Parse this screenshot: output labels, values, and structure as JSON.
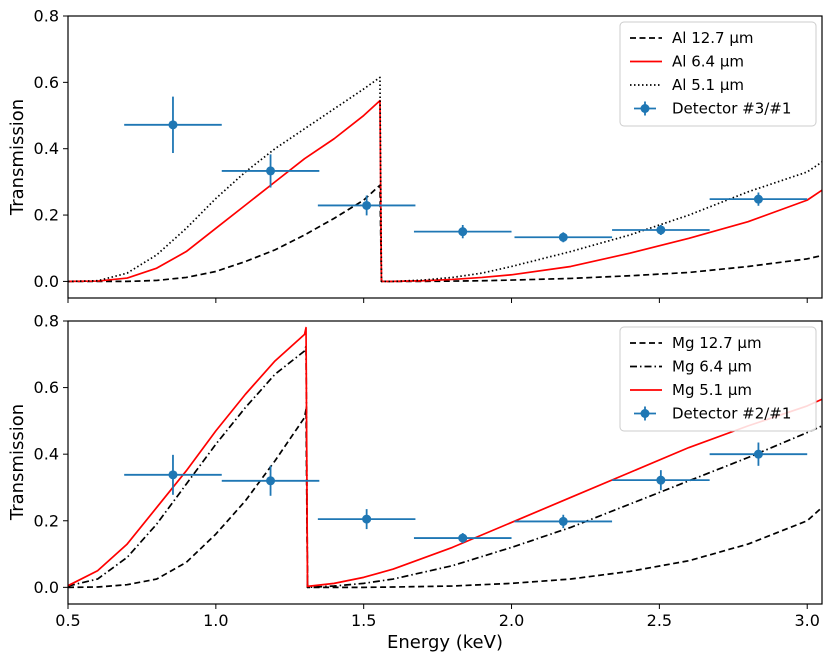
{
  "chart_data": [
    {
      "type": "line",
      "title": "",
      "xlabel": "",
      "ylabel": "Transmission",
      "xlim": [
        0.5,
        3.05
      ],
      "ylim": [
        -0.05,
        0.8
      ],
      "xticks": [
        0.5,
        1.0,
        1.5,
        2.0,
        2.5,
        3.0
      ],
      "show_xtick_labels": false,
      "yticks": [
        0.0,
        0.2,
        0.4,
        0.6,
        0.8
      ],
      "ytick_labels": [
        "0.0",
        "0.2",
        "0.4",
        "0.6",
        "0.8"
      ],
      "grid": false,
      "legend_position": "upper right",
      "series": [
        {
          "name": "Al 12.7 μm",
          "style": "dashed",
          "color": "#000000",
          "x": [
            0.5,
            0.6,
            0.7,
            0.8,
            0.9,
            1.0,
            1.1,
            1.2,
            1.3,
            1.4,
            1.5,
            1.555,
            1.56,
            1.6,
            1.7,
            1.8,
            1.9,
            2.0,
            2.2,
            2.4,
            2.6,
            2.8,
            3.0,
            3.05
          ],
          "y": [
            0,
            0,
            0,
            0.003,
            0.012,
            0.03,
            0.06,
            0.095,
            0.14,
            0.19,
            0.245,
            0.29,
            0,
            0,
            0,
            0.001,
            0.002,
            0.004,
            0.009,
            0.017,
            0.027,
            0.045,
            0.068,
            0.078
          ]
        },
        {
          "name": "Al 6.4 μm",
          "style": "solid",
          "color": "#ff0000",
          "x": [
            0.5,
            0.6,
            0.7,
            0.8,
            0.9,
            1.0,
            1.1,
            1.2,
            1.3,
            1.4,
            1.5,
            1.555,
            1.56,
            1.6,
            1.7,
            1.8,
            1.9,
            2.0,
            2.2,
            2.4,
            2.6,
            2.8,
            3.0,
            3.05
          ],
          "y": [
            0,
            0.001,
            0.01,
            0.04,
            0.09,
            0.16,
            0.23,
            0.3,
            0.37,
            0.43,
            0.5,
            0.545,
            0,
            0,
            0.002,
            0.006,
            0.012,
            0.02,
            0.045,
            0.085,
            0.13,
            0.18,
            0.245,
            0.275
          ]
        },
        {
          "name": "Al 5.1 μm",
          "style": "dotted",
          "color": "#000000",
          "x": [
            0.5,
            0.6,
            0.7,
            0.8,
            0.9,
            1.0,
            1.1,
            1.2,
            1.3,
            1.4,
            1.5,
            1.555,
            1.56,
            1.6,
            1.7,
            1.8,
            1.9,
            2.0,
            2.2,
            2.4,
            2.6,
            2.8,
            3.0,
            3.05
          ],
          "y": [
            0,
            0.002,
            0.025,
            0.08,
            0.16,
            0.25,
            0.33,
            0.4,
            0.46,
            0.52,
            0.58,
            0.615,
            0,
            0,
            0.004,
            0.012,
            0.025,
            0.045,
            0.09,
            0.14,
            0.2,
            0.27,
            0.33,
            0.36
          ]
        },
        {
          "name": "Detector #3/#1",
          "style": "errorbar",
          "color": "#1f77b4",
          "x": [
            0.855,
            1.185,
            1.51,
            1.835,
            2.175,
            2.505,
            2.835
          ],
          "y": [
            0.472,
            0.333,
            0.229,
            0.15,
            0.133,
            0.155,
            0.248
          ],
          "xerr": [
            0.165,
            0.165,
            0.165,
            0.165,
            0.165,
            0.165,
            0.165
          ],
          "yerr": [
            0.085,
            0.05,
            0.03,
            0.02,
            0.015,
            0.015,
            0.02
          ]
        }
      ]
    },
    {
      "type": "line",
      "title": "",
      "xlabel": "Energy (keV)",
      "ylabel": "Transmission",
      "xlim": [
        0.5,
        3.05
      ],
      "ylim": [
        -0.05,
        0.8
      ],
      "xticks": [
        0.5,
        1.0,
        1.5,
        2.0,
        2.5,
        3.0
      ],
      "xtick_labels": [
        "0.5",
        "1.0",
        "1.5",
        "2.0",
        "2.5",
        "3.0"
      ],
      "show_xtick_labels": true,
      "yticks": [
        0.0,
        0.2,
        0.4,
        0.6,
        0.8
      ],
      "ytick_labels": [
        "0.0",
        "0.2",
        "0.4",
        "0.6",
        "0.8"
      ],
      "grid": false,
      "legend_position": "upper right",
      "series": [
        {
          "name": "Mg 12.7 μm",
          "style": "dashed",
          "color": "#000000",
          "x": [
            0.5,
            0.6,
            0.7,
            0.8,
            0.9,
            1.0,
            1.1,
            1.2,
            1.3,
            1.305,
            1.31,
            1.4,
            1.5,
            1.6,
            1.8,
            2.0,
            2.2,
            2.4,
            2.6,
            2.8,
            3.0,
            3.05
          ],
          "y": [
            0,
            0.001,
            0.008,
            0.025,
            0.075,
            0.16,
            0.26,
            0.38,
            0.51,
            0.535,
            0,
            0,
            0,
            0.001,
            0.004,
            0.012,
            0.025,
            0.048,
            0.08,
            0.13,
            0.2,
            0.24
          ]
        },
        {
          "name": "Mg 6.4 μm",
          "style": "dashdot",
          "color": "#000000",
          "x": [
            0.5,
            0.6,
            0.7,
            0.8,
            0.9,
            1.0,
            1.1,
            1.2,
            1.3,
            1.305,
            1.31,
            1.4,
            1.5,
            1.6,
            1.8,
            2.0,
            2.2,
            2.4,
            2.6,
            2.8,
            3.0,
            3.05
          ],
          "y": [
            0.004,
            0.025,
            0.09,
            0.19,
            0.31,
            0.43,
            0.54,
            0.64,
            0.71,
            0.725,
            0,
            0.004,
            0.012,
            0.025,
            0.065,
            0.12,
            0.18,
            0.25,
            0.32,
            0.39,
            0.465,
            0.485
          ]
        },
        {
          "name": "Mg 5.1 μm",
          "style": "solid",
          "color": "#ff0000",
          "x": [
            0.5,
            0.6,
            0.7,
            0.8,
            0.9,
            1.0,
            1.1,
            1.2,
            1.3,
            1.305,
            1.31,
            1.4,
            1.5,
            1.6,
            1.8,
            2.0,
            2.2,
            2.4,
            2.6,
            2.8,
            3.0,
            3.05
          ],
          "y": [
            0.005,
            0.05,
            0.13,
            0.24,
            0.35,
            0.47,
            0.58,
            0.68,
            0.76,
            0.78,
            0.003,
            0.012,
            0.03,
            0.055,
            0.12,
            0.195,
            0.27,
            0.345,
            0.42,
            0.485,
            0.545,
            0.565
          ]
        },
        {
          "name": "Detector #2/#1",
          "style": "errorbar",
          "color": "#1f77b4",
          "x": [
            0.855,
            1.185,
            1.51,
            1.835,
            2.175,
            2.505,
            2.835
          ],
          "y": [
            0.338,
            0.32,
            0.205,
            0.148,
            0.198,
            0.322,
            0.4
          ],
          "xerr": [
            0.165,
            0.165,
            0.165,
            0.165,
            0.165,
            0.165,
            0.165
          ],
          "yerr": [
            0.06,
            0.045,
            0.03,
            0.015,
            0.02,
            0.03,
            0.035
          ]
        }
      ]
    }
  ]
}
